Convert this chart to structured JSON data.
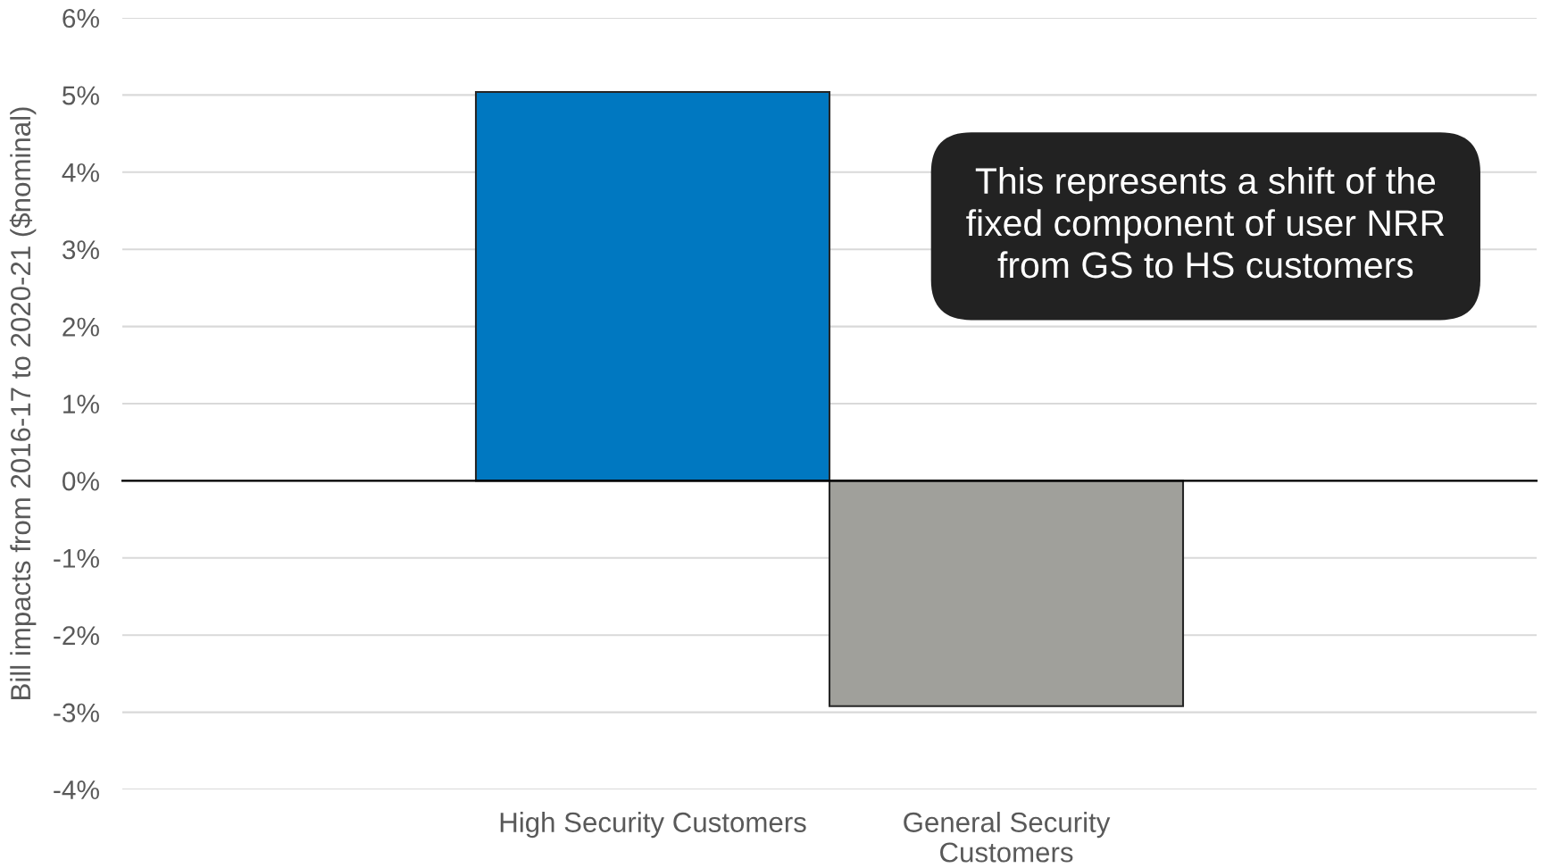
{
  "chart_data": {
    "type": "bar",
    "ylabel": "Bill impacts from 2016-17 to 2020-21 ($nominal)",
    "categories": [
      "High Security Customers",
      "General Security\nCustomers"
    ],
    "values": [
      5.04,
      -2.92
    ],
    "colors": [
      "#0078c1",
      "#a0a09b"
    ],
    "ylim": [
      -4,
      6
    ],
    "yticks": [
      {
        "value": -4,
        "label": "-4%"
      },
      {
        "value": -3,
        "label": "-3%"
      },
      {
        "value": -2,
        "label": "-2%"
      },
      {
        "value": -1,
        "label": "-1%"
      },
      {
        "value": 0,
        "label": "0%"
      },
      {
        "value": 1,
        "label": "1%"
      },
      {
        "value": 2,
        "label": "2%"
      },
      {
        "value": 3,
        "label": "3%"
      },
      {
        "value": 4,
        "label": "4%"
      },
      {
        "value": 5,
        "label": "5%"
      },
      {
        "value": 6,
        "label": "6%"
      }
    ],
    "grid": "y",
    "annotations": [
      "This represents a shift of the\nfixed component of user NRR\nfrom GS to HS customers"
    ]
  }
}
